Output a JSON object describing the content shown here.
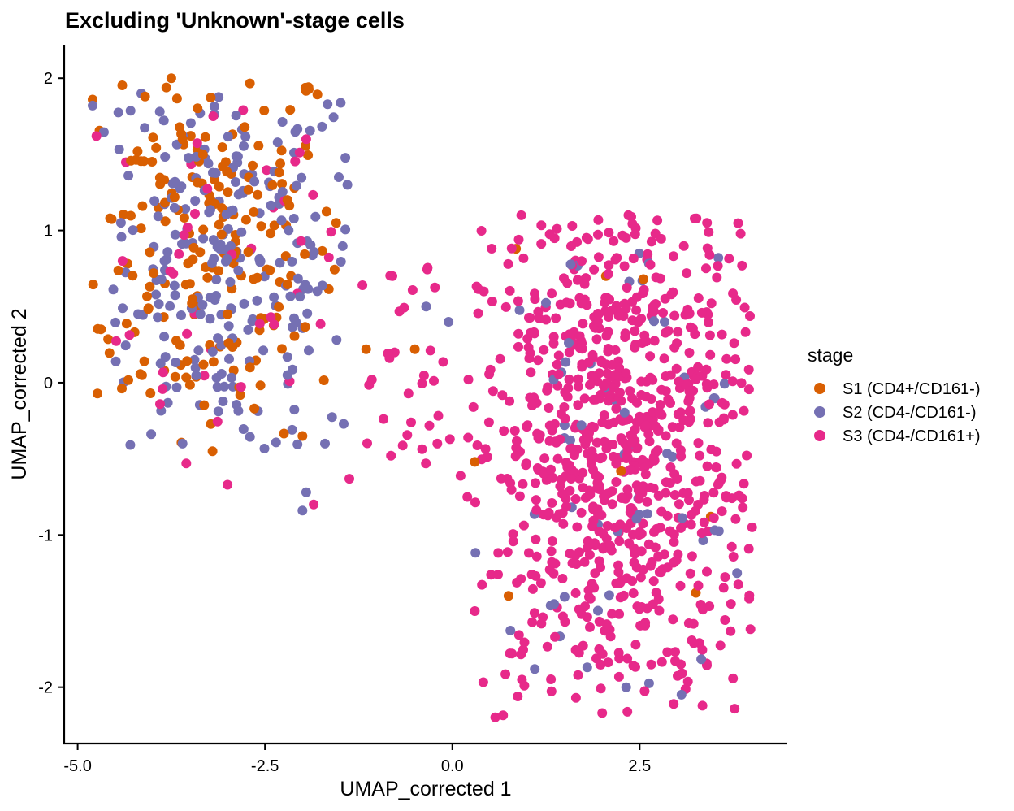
{
  "chart_data": {
    "type": "scatter",
    "title": "Excluding 'Unknown'-stage cells",
    "xlabel": "UMAP_corrected 1",
    "ylabel": "UMAP_corrected 2",
    "xlim": [
      -5.18,
      4.47
    ],
    "ylim": [
      -2.37,
      2.22
    ],
    "x_ticks": [
      -5.0,
      -2.5,
      0.0,
      2.5
    ],
    "x_tick_labels": [
      "-5.0",
      "-2.5",
      "0.0",
      "2.5"
    ],
    "y_ticks": [
      -2,
      -1,
      0,
      1,
      2
    ],
    "y_tick_labels": [
      "-2",
      "-1",
      "0",
      "1",
      "2"
    ],
    "grid": false,
    "legend": {
      "title": "stage",
      "position": "right"
    },
    "series": [
      {
        "name": "S1 (CD4+/CD161-)",
        "color": "#D95F02",
        "regions": [
          {
            "x_range": [
              -4.8,
              -1.5
            ],
            "y_range": [
              -0.5,
              2.0
            ],
            "center": [
              -3.3,
              0.9
            ],
            "n": 190
          }
        ],
        "points": [
          [
            -3.75,
            2.0
          ],
          [
            -4.8,
            1.86
          ],
          [
            -4.1,
            1.88
          ],
          [
            -3.6,
            1.6
          ],
          [
            -4.2,
            1.52
          ],
          [
            -2.2,
            1.2
          ],
          [
            -1.55,
            1.05
          ],
          [
            -3.5,
            0.65
          ],
          [
            -3.0,
            0.45
          ],
          [
            -2.7,
            0.1
          ],
          [
            -2.0,
            -0.35
          ],
          [
            -3.2,
            -0.45
          ],
          [
            -1.15,
            0.22
          ],
          [
            -0.5,
            0.22
          ],
          [
            0.75,
            -1.4
          ],
          [
            0.3,
            -0.52
          ],
          [
            2.55,
            0.68
          ],
          [
            2.05,
            0.7
          ],
          [
            0.85,
            0.88
          ],
          [
            2.25,
            -0.58
          ],
          [
            3.45,
            -0.88
          ],
          [
            3.25,
            -1.38
          ]
        ]
      },
      {
        "name": "S2 (CD4-/CD161-)",
        "color": "#7570B3",
        "regions": [
          {
            "x_range": [
              -4.8,
              -1.4
            ],
            "y_range": [
              -0.5,
              1.9
            ],
            "center": [
              -3.0,
              0.8
            ],
            "n": 230
          },
          {
            "x_range": [
              0.3,
              3.9
            ],
            "y_range": [
              -2.05,
              1.0
            ],
            "center": [
              2.2,
              -0.5
            ],
            "n": 55
          }
        ],
        "points": [
          [
            -4.8,
            1.82
          ],
          [
            -4.15,
            1.9
          ],
          [
            -3.6,
            -0.4
          ],
          [
            -2.2,
            0.05
          ],
          [
            -1.4,
            1.3
          ],
          [
            -0.35,
            0.5
          ],
          [
            -0.05,
            0.4
          ],
          [
            -1.95,
            -0.72
          ],
          [
            -2.0,
            -0.84
          ],
          [
            -1.7,
            -0.4
          ],
          [
            1.1,
            -1.88
          ],
          [
            1.8,
            -1.87
          ],
          [
            2.32,
            -2.0
          ],
          [
            3.8,
            -1.25
          ],
          [
            3.55,
            0.82
          ]
        ]
      },
      {
        "name": "S3 (CD4-/CD161+)",
        "color": "#E7298A",
        "regions": [
          {
            "x_range": [
              0.2,
              4.0
            ],
            "y_range": [
              -2.2,
              1.1
            ],
            "center": [
              2.2,
              -0.45
            ],
            "n": 820
          },
          {
            "x_range": [
              -4.8,
              -1.6
            ],
            "y_range": [
              -0.6,
              1.8
            ],
            "center": [
              -3.3,
              0.6
            ],
            "n": 40
          },
          {
            "x_range": [
              -1.4,
              0.3
            ],
            "y_range": [
              -0.8,
              0.8
            ],
            "center": [
              -0.6,
              0.0
            ],
            "n": 30
          }
        ],
        "points": [
          [
            -4.75,
            1.62
          ],
          [
            -4.4,
            0.8
          ],
          [
            -3.55,
            -0.53
          ],
          [
            -3.0,
            -0.67
          ],
          [
            -1.85,
            -0.8
          ],
          [
            -1.95,
            1.6
          ],
          [
            -1.2,
            0.64
          ],
          [
            -0.8,
            0.7
          ],
          [
            -0.55,
            -0.26
          ],
          [
            -0.2,
            -0.4
          ],
          [
            0.2,
            -0.75
          ],
          [
            2.0,
            -2.17
          ],
          [
            1.65,
            -2.07
          ],
          [
            2.35,
            1.1
          ],
          [
            1.6,
            1.03
          ],
          [
            0.3,
            -1.5
          ],
          [
            4.0,
            -0.95
          ]
        ]
      }
    ]
  }
}
